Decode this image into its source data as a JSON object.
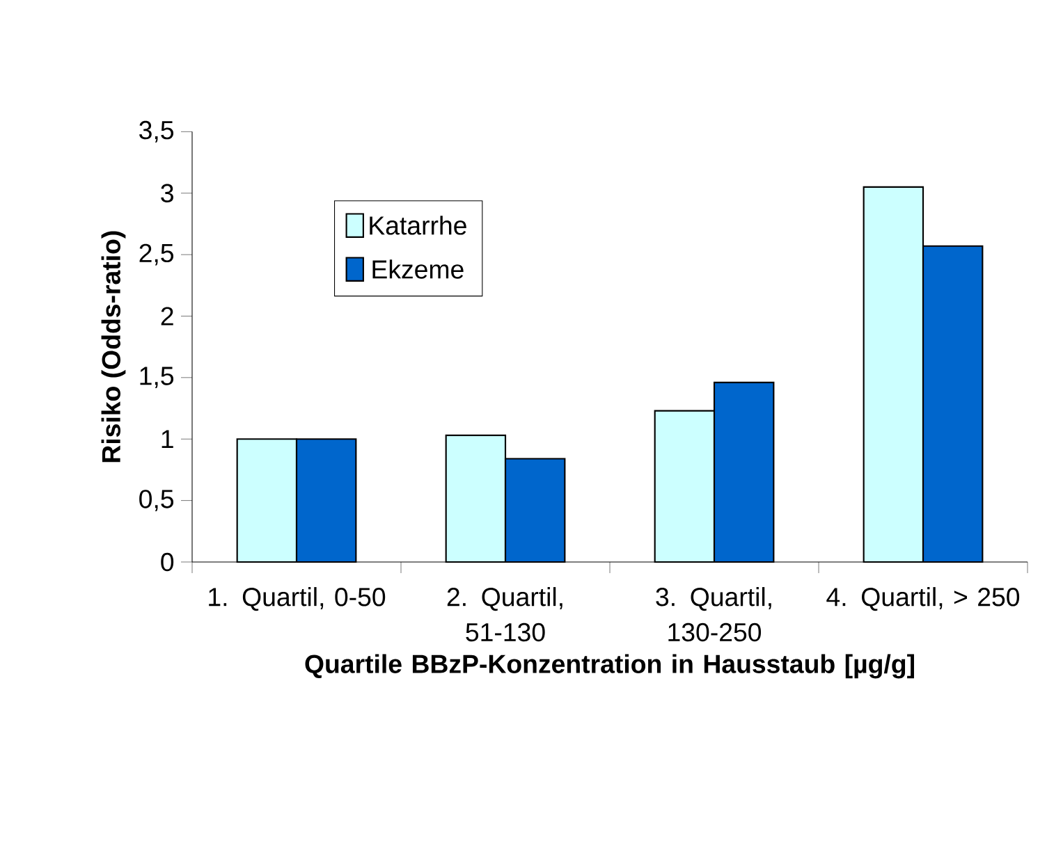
{
  "chart_data": {
    "type": "bar",
    "xlabel": "Quartile BBzP-Konzentration in Hausstaub [µg/g]",
    "ylabel": "Risiko (Odds-ratio)",
    "categories": [
      "1. Quartil, 0-50",
      "2. Quartil, 51-130",
      "3. Quartil, 130-250",
      "4. Quartil, > 250"
    ],
    "series": [
      {
        "name": "Katarrhe",
        "color": "#ccffff",
        "values": [
          1.0,
          1.03,
          1.23,
          3.05
        ]
      },
      {
        "name": "Ekzeme",
        "color": "#0066cc",
        "values": [
          1.0,
          0.84,
          1.46,
          2.57
        ]
      }
    ],
    "ylim": [
      0,
      3.5
    ],
    "yticks": [
      0,
      {
        "value": 0.5,
        "label": "0,5"
      },
      1,
      {
        "value": 1.5,
        "label": "1,5"
      },
      2,
      {
        "value": 2.5,
        "label": "2,5"
      },
      3,
      {
        "value": 3.5,
        "label": "3,5"
      }
    ],
    "grid": false,
    "legend": "top left"
  }
}
